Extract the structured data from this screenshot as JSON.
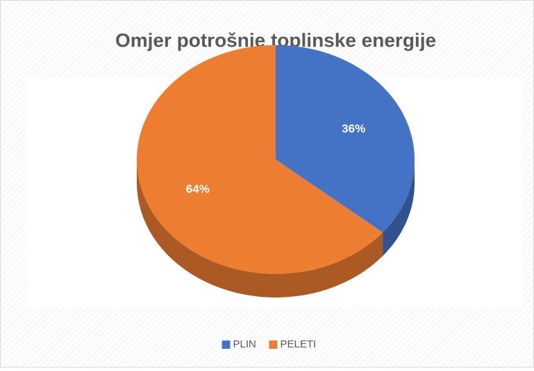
{
  "chart_data": {
    "type": "pie",
    "title": "Omjer potrošnje toplinske energije",
    "categories": [
      "PLIN",
      "PELETI"
    ],
    "values": [
      36,
      64
    ],
    "value_labels": [
      "36%",
      "64%"
    ],
    "colors": [
      "#4472c4",
      "#ed7d31"
    ],
    "legend": "bottom"
  }
}
